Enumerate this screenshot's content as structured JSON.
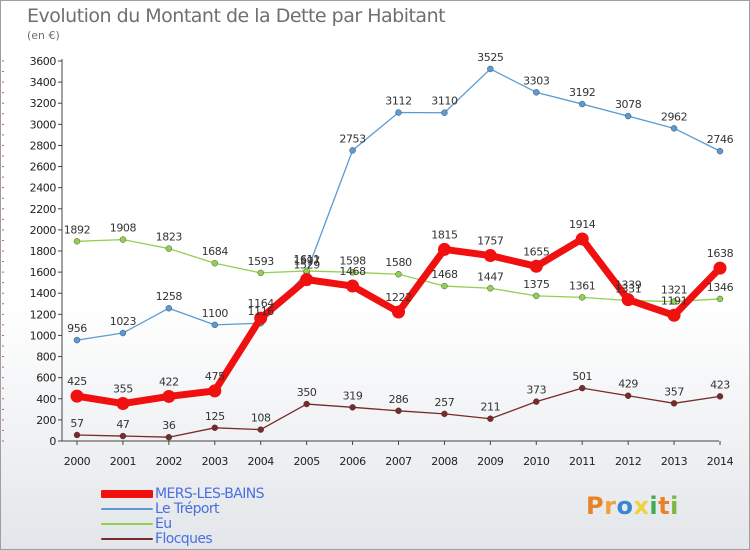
{
  "title": "Evolution du Montant de la Dette par Habitant",
  "unit": "(en €)",
  "logo": {
    "text": "Proxiti",
    "letter_colors": [
      "#e8822a",
      "#f2a03a",
      "#3a86d0",
      "#f0d33a",
      "#3fae4f",
      "#e8822a",
      "#7db83d"
    ]
  },
  "chart_data": {
    "type": "line",
    "title": "Evolution du Montant de la Dette par Habitant",
    "ylabel": "(en €)",
    "xlabel": "",
    "ylim": [
      0,
      3600
    ],
    "ytick_step": 200,
    "grid": false,
    "legend_position": "bottom-left",
    "categories": [
      "2000",
      "2001",
      "2002",
      "2003",
      "2004",
      "2005",
      "2006",
      "2007",
      "2008",
      "2009",
      "2010",
      "2011",
      "2012",
      "2013",
      "2014"
    ],
    "series": [
      {
        "name": "MERS-LES-BAINS",
        "color": "#f01010",
        "bold": true,
        "values": [
          425,
          355,
          422,
          475,
          1164,
          1529,
          1468,
          1222,
          1815,
          1757,
          1655,
          1914,
          1339,
          1191,
          1638
        ],
        "labels": [
          "425",
          "355",
          "422",
          "475",
          "1164",
          "1529",
          "1468",
          "1222",
          "1815",
          "1757",
          "1655",
          "1914",
          "1339",
          "1191",
          "1638"
        ]
      },
      {
        "name": "Le Tréport",
        "color": "#5a9bd5",
        "bold": false,
        "values": [
          956,
          1023,
          1258,
          1100,
          1116,
          1597,
          2753,
          3112,
          3110,
          3525,
          3303,
          3192,
          3078,
          2962,
          2746
        ],
        "labels": [
          "956",
          "1023",
          "1258",
          "1100",
          "1116",
          "1597",
          "2753",
          "3112",
          "3110",
          "3525",
          "3303",
          "3192",
          "3078",
          "2962",
          "2746"
        ]
      },
      {
        "name": "Eu",
        "color": "#92d050",
        "bold": false,
        "values": [
          1892,
          1908,
          1823,
          1684,
          1593,
          1611,
          1598,
          1580,
          1468,
          1447,
          1375,
          1361,
          1331,
          1321,
          1346
        ],
        "labels": [
          "1892",
          "1908",
          "1823",
          "1684",
          "1593",
          "1611",
          "1598",
          "1580",
          "1468",
          "1447",
          "1375",
          "1361",
          "1331",
          "1321",
          "1346"
        ]
      },
      {
        "name": "Flocques",
        "color": "#7a2a2a",
        "bold": false,
        "values": [
          57,
          47,
          36,
          125,
          108,
          350,
          319,
          286,
          257,
          211,
          373,
          501,
          429,
          357,
          423
        ],
        "labels": [
          "57",
          "47",
          "36",
          "125",
          "108",
          "350",
          "319",
          "286",
          "257",
          "211",
          "373",
          "501",
          "429",
          "357",
          "423"
        ]
      }
    ]
  }
}
